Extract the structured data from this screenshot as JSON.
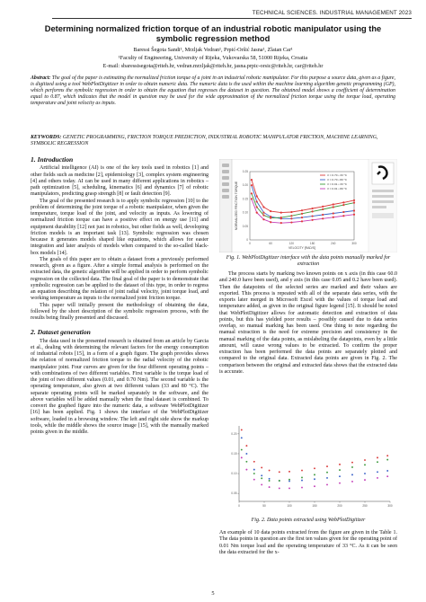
{
  "header": {
    "running_head": "TECHNICAL SCIENCES. INDUSTRIAL MANAGEMENT 2023"
  },
  "title_block": {
    "title": "Determining normalized friction torque of an industrial robotic manipulator using the symbolic regression method",
    "authors": "Baressi Šegota Sandi¹, Mrzljak Vedran¹, Prpić-Oršić Jasna¹, Zlatan Car¹",
    "affiliation": "¹Faculty of Engineering, University of Rijeka, Vukovarska 58, 51000 Rijeka, Croatia",
    "emails": "E-mail: sbaressisegota@riteh.hr, vedran.mrzljak@riteh.hr, jasna.prpic-orsic@riteh.hr, car@riteh.hr"
  },
  "abstract": {
    "label": "Abstract:",
    "text": "The goal of the paper is estimating the normalized friction torque of a joint in an industrial robotic manipulator. For this purpose a source data, given as a figure, is digitized using a tool WebPlotDigitizer in order to obtain numeric data. The numeric data is the used within the machine learning algorithm genetic programming (GP), which performs the symbolic regression in order to obtain the equation that regresses the dataset in question. The obtained model shows a coefficient of determination equal to 0.87, which indicates that the model in question may be used for the wide approximation of the normalized friction torque using the torque load, operating temperature and joint velocity as inputs."
  },
  "keywords": {
    "label": "KEYWORDS:",
    "text": "GENETIC PROGRAMMING, FRICTION TORQUE PREDICTION, INDUSTRIAL ROBOTIC MANIPULATOR FRICTION, MACHINE LEARNING, SYMBOLIC REGRESSION"
  },
  "sections": {
    "intro_title": "1. Introduction",
    "intro_p1": "Artificial intelligence (AI) is one of the key tools used in robotics [1] and other fields such as medicine [2], epidemiology [3], complex system engineering [4] and others today. AI can be used in many different applications in robotics – path optimization [5], scheduling, kinematics [6] and dynamics [7] of robotic manipulators, predicting grasp strength [8] or fault detection [9].",
    "intro_p2": "The goal of the presented research is to apply symbolic regression [10] to the problem of determining the joint torque of a robotic manipulator, when given the temperature, torque load of the joint, and velocity as inputs. As lowering of normalized friction torque can have a positive effect on energy use [11] and equipment durability [12] not just in robotics, but other fields as well, developing friction models is an important task [13]. Symbolic regression was chosen because it generates models shaped like equations, which allows for easier integration and later analysis of models when compared to the so-called black-box models [14].",
    "intro_p3": "The goals of this paper are to obtain a dataset from a previously performed research, given as a figure. After a simple formal analysis is performed on the extracted data, the genetic algorithm will be applied in order to perform symbolic regression on the collected data. The final goal of the paper is to demonstrate that symbolic regression can be applied to the dataset of this type, in order to regress an equation describing the relation of joint radial velocity, joint torque load, and working temperature as inputs to the normalized joint friction torque.",
    "intro_p4": "This paper will initially present the methodology of obtaining the data, followed by the short description of the symbolic regression process, with the results being finally presented and discussed.",
    "dataset_title": "2. Dataset generation",
    "dataset_p1": "The data used in the presented research is obtained from an article by Garcia et al., dealing with determining the relevant factors for the energy consumption of industrial robots [15], in a form of a graph figure. The graph provides shows the relation of normalized friction torque to the radial velocity of the robotic manipulator joint. Four curves are given for the four different operating points – with combinations of two different variables. First variable is the torque load of the joint of two different values (0.01, and 0.70 Nm). The second variable is the operating temperature, also given at two different values (33 and 80 °C). The separate operating points will be marked separately in the software, and the above variables will be added manually when the final dataset is combined. To convert the graphed figure into the numeric data, a software WebPlotDigitizer [16] has been applied. Fig. 1 shows the interface of the WebPlotDigitizer software, loaded in a browsing window. The left and right side show the markup tools, while the middle shows the source image [15], with the manually marked points given in the middle.",
    "right_p1": "The process starts by marking two known points on x axis (in this case 60.0 and 240.0 have been used), and y axis (in this case 0.05 and 0.2 have been used). Then the datapoints of the selected series are marked and their values are exported. This process is repeated with all of the separate data series, with the exports later merged in Microsoft Excel with the values of torque load and temperature added, as given in the original figure legend [15]. It should be noted that WebPlotDigitizer allows for automatic detection and extraction of data points, but this has yielded poor results – possibly caused due to data series overlap, so manual marking has been used. One thing to note regarding the manual extraction is the need for extreme precision and consistency in the manual marking of the data points, as mislabeling the datapoints, even by a little amount, will cause wrong values to be extracted. To confirm the proper extraction has been performed the data points are separately plotted and compared to the original data. Extracted data points are given in Fig. 2. The comparison between the original and extracted data shows that the extracted data is accurate.",
    "right_p2": "An example of 10 data points extracted from the figure are given in the Table 1. The data points in question are the first ten values given for the operating point of 0.01 Nm torque load and the operating temperature of 33 °C. As it can be seen the data extracted for the x-"
  },
  "figures": {
    "fig1_caption": "Fig. 1. WebPlotDigitizer interface with the data points manually marked for extraction",
    "fig2_caption": "Fig. 2. Data points extracted using WebPlotDigitizer",
    "fig1_xlabel": "VELOCITY [RAD/S]",
    "fig1_ylabel": "NORMALIZED FRICTION TORQUE",
    "fig1_legend": [
      "τl = 0.70 • 33 °C",
      "τl = 0.70 • 80 °C",
      "τl = 0.01 • 33 °C",
      "τl = 0.01 • 80 °C"
    ],
    "fig1_xticks": [
      "0",
      "60",
      "120",
      "180",
      "240",
      "300"
    ],
    "fig1_yticks": [
      "0.25",
      "0.20",
      "0.15",
      "0.10",
      "0.05",
      "0"
    ],
    "fig2_xticks": [
      "0",
      "50",
      "100",
      "150",
      "200",
      "250",
      "300"
    ],
    "fig2_yticks": [
      "0.20",
      "0.15",
      "0.10",
      "0.05"
    ]
  },
  "colors": {
    "series_red": "#d93b3b",
    "series_blue": "#3a63c8",
    "series_green": "#3f9a3f",
    "series_magenta": "#c43fb8",
    "digitizer_points": "#e23a3a"
  },
  "chart_data": [
    {
      "type": "line",
      "title": "",
      "xlabel": "VELOCITY [RAD/S]",
      "ylabel": "NORMALIZED FRICTION TORQUE",
      "xlim": [
        0,
        300
      ],
      "ylim": [
        0,
        0.25
      ],
      "x": [
        5,
        20,
        40,
        60,
        90,
        120,
        150,
        180,
        210,
        240,
        270,
        300
      ],
      "series": [
        {
          "name": "τl = 0.70 • 33 °C",
          "color": "#d93b3b",
          "values": [
            0.22,
            0.16,
            0.12,
            0.105,
            0.1,
            0.102,
            0.108,
            0.115,
            0.122,
            0.13,
            0.137,
            0.145
          ]
        },
        {
          "name": "τl = 0.70 • 80 °C",
          "color": "#3a63c8",
          "values": [
            0.2,
            0.14,
            0.1,
            0.085,
            0.078,
            0.078,
            0.082,
            0.087,
            0.092,
            0.097,
            0.102,
            0.107
          ]
        },
        {
          "name": "τl = 0.01 • 33 °C",
          "color": "#3f9a3f",
          "values": [
            0.17,
            0.12,
            0.09,
            0.08,
            0.082,
            0.088,
            0.096,
            0.104,
            0.112,
            0.12,
            0.128,
            0.136
          ]
        },
        {
          "name": "τl = 0.01 • 80 °C",
          "color": "#c43fb8",
          "values": [
            0.15,
            0.1,
            0.075,
            0.065,
            0.062,
            0.064,
            0.068,
            0.073,
            0.078,
            0.083,
            0.088,
            0.093
          ]
        }
      ],
      "grid": false,
      "legend": "top-right"
    },
    {
      "type": "scatter",
      "title": "",
      "xlim": [
        0,
        300
      ],
      "ylim": [
        0.03,
        0.22
      ],
      "x": [
        5,
        15,
        30,
        45,
        60,
        80,
        100,
        125,
        150,
        175,
        200,
        225,
        250,
        275,
        295
      ],
      "series": [
        {
          "color": "#d93b3b",
          "values": [
            0.21,
            0.17,
            0.13,
            0.115,
            0.108,
            0.104,
            0.105,
            0.108,
            0.113,
            0.118,
            0.123,
            0.128,
            0.134,
            0.14,
            0.145
          ]
        },
        {
          "color": "#3a63c8",
          "values": [
            0.19,
            0.15,
            0.11,
            0.095,
            0.087,
            0.082,
            0.081,
            0.083,
            0.086,
            0.089,
            0.093,
            0.097,
            0.1,
            0.104,
            0.107
          ]
        },
        {
          "color": "#3f9a3f",
          "values": [
            0.16,
            0.13,
            0.1,
            0.088,
            0.082,
            0.082,
            0.085,
            0.09,
            0.097,
            0.103,
            0.109,
            0.116,
            0.122,
            0.129,
            0.135
          ]
        },
        {
          "color": "#c43fb8",
          "values": [
            0.14,
            0.11,
            0.085,
            0.072,
            0.066,
            0.063,
            0.063,
            0.065,
            0.068,
            0.072,
            0.076,
            0.08,
            0.084,
            0.089,
            0.093
          ]
        }
      ],
      "grid": false
    }
  ],
  "page_number": "5"
}
